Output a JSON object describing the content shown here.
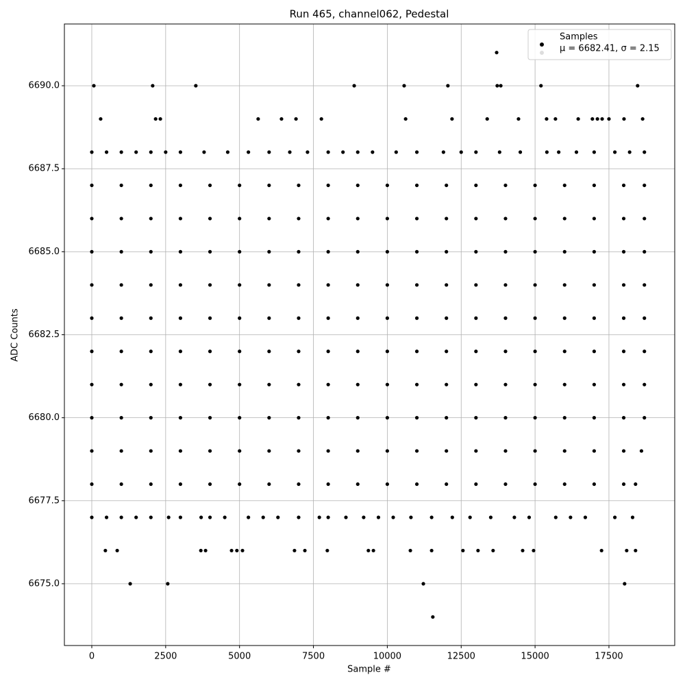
{
  "chart_data": {
    "type": "scatter",
    "title": "Run 465, channel062, Pedestal",
    "x_label": "Sample #",
    "y_label": "ADC Counts",
    "xlim": [
      -927,
      19726
    ],
    "ylim": [
      6673.14,
      6691.86
    ],
    "xticks": [
      0,
      2500,
      5000,
      7500,
      10000,
      12500,
      15000,
      17500
    ],
    "yticks": [
      {
        "value": 6675,
        "label": "6675.0"
      },
      {
        "value": 6677.5,
        "label": "6677.5"
      },
      {
        "value": 6680,
        "label": "6680.0"
      },
      {
        "value": 6682.5,
        "label": "6682.5"
      },
      {
        "value": 6685,
        "label": "6685.0"
      },
      {
        "value": 6687.5,
        "label": "6687.5"
      },
      {
        "value": 6690,
        "label": "6690.0"
      }
    ],
    "grid": true,
    "legend": "upper right",
    "series": [
      {
        "name": "Samples",
        "color": "#000000",
        "x": [
          13700,
          70,
          2060,
          3520,
          8880,
          10570,
          12050,
          13720,
          13840,
          15200,
          18470,
          300,
          2160,
          2320,
          5630,
          6420,
          6910,
          7770,
          10620,
          12190,
          13380,
          14440,
          15390,
          15690,
          16460,
          16940,
          17110,
          17270,
          17500,
          18010,
          18640,
          0,
          500,
          1000,
          1500,
          2000,
          2500,
          3000,
          3800,
          4600,
          5300,
          6000,
          6700,
          7300,
          8000,
          8500,
          9000,
          9500,
          10300,
          11000,
          11900,
          12500,
          13000,
          13800,
          14500,
          15400,
          15800,
          16400,
          17000,
          17700,
          18200,
          18700,
          0,
          1000,
          2000,
          3000,
          4000,
          5000,
          6000,
          7000,
          8000,
          9000,
          10000,
          11000,
          12000,
          13000,
          14000,
          15000,
          16000,
          17000,
          18000,
          18700,
          0,
          1000,
          2000,
          3000,
          4000,
          5000,
          6000,
          7000,
          8000,
          9000,
          10000,
          11000,
          12000,
          13000,
          14000,
          15000,
          16000,
          17000,
          18000,
          18700,
          0,
          1000,
          2000,
          3000,
          4000,
          5000,
          6000,
          7000,
          8000,
          9000,
          10000,
          11000,
          12000,
          13000,
          14000,
          15000,
          16000,
          17000,
          18000,
          18700,
          0,
          1000,
          2000,
          3000,
          4000,
          5000,
          6000,
          7000,
          8000,
          9000,
          10000,
          11000,
          12000,
          13000,
          14000,
          15000,
          16000,
          17000,
          18000,
          18700,
          0,
          1000,
          2000,
          3000,
          4000,
          5000,
          6000,
          7000,
          8000,
          9000,
          10000,
          11000,
          12000,
          13000,
          14000,
          15000,
          16000,
          17000,
          18000,
          18700,
          0,
          1000,
          2000,
          3000,
          4000,
          5000,
          6000,
          7000,
          8000,
          9000,
          10000,
          11000,
          12000,
          13000,
          14000,
          15000,
          16000,
          17000,
          18000,
          18700,
          0,
          1000,
          2000,
          3000,
          4000,
          5000,
          6000,
          7000,
          8000,
          9000,
          10000,
          11000,
          12000,
          13000,
          14000,
          15000,
          16000,
          17000,
          18000,
          18700,
          0,
          1000,
          2000,
          3000,
          4000,
          5000,
          6000,
          7000,
          8000,
          9000,
          10000,
          11000,
          12000,
          13000,
          14000,
          15000,
          16000,
          17000,
          18000,
          18700,
          0,
          1000,
          2000,
          3000,
          4000,
          5000,
          6000,
          7000,
          8000,
          9000,
          10000,
          11000,
          12000,
          13000,
          14000,
          15000,
          16000,
          17000,
          18000,
          18600,
          0,
          1000,
          2000,
          3000,
          4000,
          5000,
          6000,
          7000,
          8000,
          9000,
          10000,
          11000,
          12000,
          13000,
          14000,
          15000,
          16000,
          17000,
          18000,
          18400,
          0,
          500,
          1000,
          1500,
          2000,
          2600,
          3000,
          3700,
          4000,
          4500,
          5300,
          5800,
          6300,
          7000,
          7700,
          8000,
          8600,
          9200,
          9700,
          10200,
          10800,
          11500,
          12200,
          12800,
          13500,
          14300,
          14800,
          15700,
          16200,
          16700,
          17700,
          18300,
          460,
          860,
          3690,
          3850,
          4730,
          4910,
          5100,
          6860,
          7210,
          7970,
          9360,
          9530,
          10780,
          11500,
          12560,
          13070,
          13580,
          14580,
          14950,
          17250,
          18100,
          18400,
          1300,
          2570,
          11220,
          18030,
          11540
        ],
        "values": [
          6691,
          6690,
          6690,
          6690,
          6690,
          6690,
          6690,
          6690,
          6690,
          6690,
          6690,
          6689,
          6689,
          6689,
          6689,
          6689,
          6689,
          6689,
          6689,
          6689,
          6689,
          6689,
          6689,
          6689,
          6689,
          6689,
          6689,
          6689,
          6689,
          6689,
          6689,
          6688,
          6688,
          6688,
          6688,
          6688,
          6688,
          6688,
          6688,
          6688,
          6688,
          6688,
          6688,
          6688,
          6688,
          6688,
          6688,
          6688,
          6688,
          6688,
          6688,
          6688,
          6688,
          6688,
          6688,
          6688,
          6688,
          6688,
          6688,
          6688,
          6688,
          6688,
          6687,
          6687,
          6687,
          6687,
          6687,
          6687,
          6687,
          6687,
          6687,
          6687,
          6687,
          6687,
          6687,
          6687,
          6687,
          6687,
          6687,
          6687,
          6687,
          6687,
          6686,
          6686,
          6686,
          6686,
          6686,
          6686,
          6686,
          6686,
          6686,
          6686,
          6686,
          6686,
          6686,
          6686,
          6686,
          6686,
          6686,
          6686,
          6686,
          6686,
          6685,
          6685,
          6685,
          6685,
          6685,
          6685,
          6685,
          6685,
          6685,
          6685,
          6685,
          6685,
          6685,
          6685,
          6685,
          6685,
          6685,
          6685,
          6685,
          6685,
          6684,
          6684,
          6684,
          6684,
          6684,
          6684,
          6684,
          6684,
          6684,
          6684,
          6684,
          6684,
          6684,
          6684,
          6684,
          6684,
          6684,
          6684,
          6684,
          6684,
          6683,
          6683,
          6683,
          6683,
          6683,
          6683,
          6683,
          6683,
          6683,
          6683,
          6683,
          6683,
          6683,
          6683,
          6683,
          6683,
          6683,
          6683,
          6683,
          6683,
          6682,
          6682,
          6682,
          6682,
          6682,
          6682,
          6682,
          6682,
          6682,
          6682,
          6682,
          6682,
          6682,
          6682,
          6682,
          6682,
          6682,
          6682,
          6682,
          6682,
          6681,
          6681,
          6681,
          6681,
          6681,
          6681,
          6681,
          6681,
          6681,
          6681,
          6681,
          6681,
          6681,
          6681,
          6681,
          6681,
          6681,
          6681,
          6681,
          6681,
          6680,
          6680,
          6680,
          6680,
          6680,
          6680,
          6680,
          6680,
          6680,
          6680,
          6680,
          6680,
          6680,
          6680,
          6680,
          6680,
          6680,
          6680,
          6680,
          6680,
          6679,
          6679,
          6679,
          6679,
          6679,
          6679,
          6679,
          6679,
          6679,
          6679,
          6679,
          6679,
          6679,
          6679,
          6679,
          6679,
          6679,
          6679,
          6679,
          6679,
          6678,
          6678,
          6678,
          6678,
          6678,
          6678,
          6678,
          6678,
          6678,
          6678,
          6678,
          6678,
          6678,
          6678,
          6678,
          6678,
          6678,
          6678,
          6678,
          6678,
          6677,
          6677,
          6677,
          6677,
          6677,
          6677,
          6677,
          6677,
          6677,
          6677,
          6677,
          6677,
          6677,
          6677,
          6677,
          6677,
          6677,
          6677,
          6677,
          6677,
          6677,
          6677,
          6677,
          6677,
          6677,
          6677,
          6677,
          6677,
          6677,
          6677,
          6677,
          6677,
          6676,
          6676,
          6676,
          6676,
          6676,
          6676,
          6676,
          6676,
          6676,
          6676,
          6676,
          6676,
          6676,
          6676,
          6676,
          6676,
          6676,
          6676,
          6676,
          6676,
          6676,
          6676,
          6675,
          6675,
          6675,
          6675,
          6674
        ]
      },
      {
        "name": "μ = 6682.41, σ = 2.15",
        "color": "#dddddd"
      }
    ]
  }
}
